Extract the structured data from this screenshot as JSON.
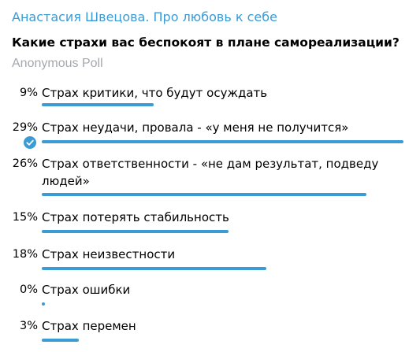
{
  "channel": {
    "title": "Анастасия Швецова. Про любовь к себе"
  },
  "poll": {
    "question": "Какие страхи вас беспокоят в плане самореализации?",
    "type_label": "Anonymous Poll",
    "accent_color": "#3a9bd5",
    "options": [
      {
        "percent": "9%",
        "value": 9,
        "text": "Страх критики, что будут осуждать",
        "selected": false
      },
      {
        "percent": "29%",
        "value": 29,
        "text": "Страх неудачи, провала - «у меня не получится»",
        "selected": true
      },
      {
        "percent": "26%",
        "value": 26,
        "text": "Страх ответственности - «не дам результат, подведу людей»",
        "selected": false
      },
      {
        "percent": "15%",
        "value": 15,
        "text": "Страх потерять стабильность",
        "selected": false
      },
      {
        "percent": "18%",
        "value": 18,
        "text": "Страх неизвестности",
        "selected": false
      },
      {
        "percent": "0%",
        "value": 0,
        "text": "Страх ошибки",
        "selected": false
      },
      {
        "percent": "3%",
        "value": 3,
        "text": "Страх перемен",
        "selected": false
      }
    ]
  }
}
